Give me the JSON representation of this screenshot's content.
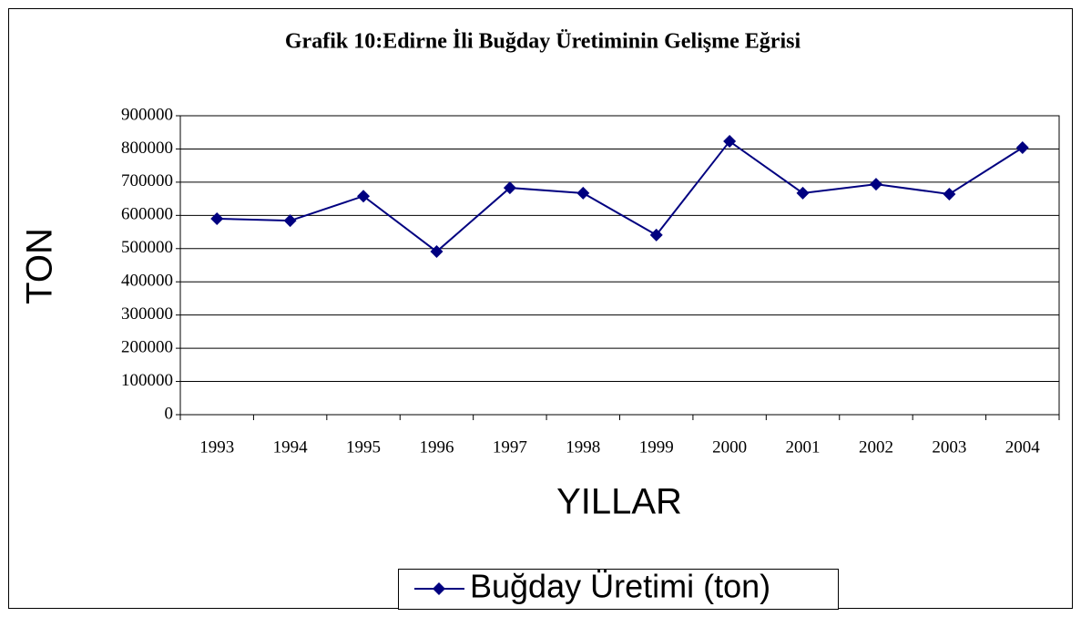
{
  "chart_data": {
    "type": "line",
    "title": "Grafik 10:Edirne İli Buğday Üretiminin Gelişme Eğrisi",
    "y_label": "TON",
    "x_label": "YILLAR",
    "categories": [
      "1993",
      "1994",
      "1995",
      "1996",
      "1997",
      "1998",
      "1999",
      "2000",
      "2001",
      "2002",
      "2003",
      "2004"
    ],
    "series": [
      {
        "name": "Buğday Üretimi (ton)",
        "color": "#000080",
        "values": [
          590000,
          584000,
          658000,
          491000,
          683000,
          667000,
          541000,
          823000,
          667000,
          694000,
          664000,
          804000
        ]
      }
    ],
    "ylim": [
      0,
      900000
    ],
    "yticks": [
      0,
      100000,
      200000,
      300000,
      400000,
      500000,
      600000,
      700000,
      800000,
      900000
    ],
    "grid": true,
    "legend": "bottom"
  }
}
